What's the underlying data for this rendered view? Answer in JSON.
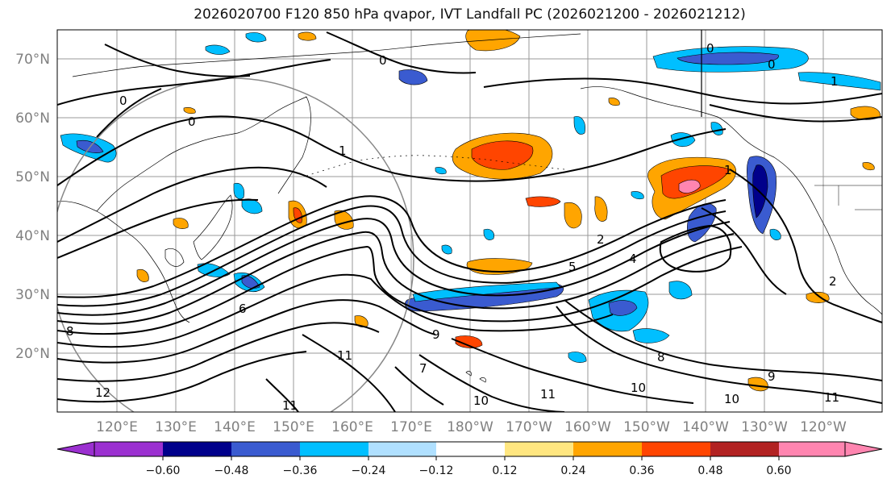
{
  "title": "2026020700 F120 850 hPa qvapor, IVT Landfall PC (2026021200 - 2026021212)",
  "lat_labels": [
    "70°N",
    "60°N",
    "50°N",
    "40°N",
    "30°N",
    "20°N"
  ],
  "lon_labels": [
    "120°E",
    "130°E",
    "140°E",
    "150°E",
    "160°E",
    "170°E",
    "180°W",
    "170°W",
    "160°W",
    "150°W",
    "140°W",
    "130°W",
    "120°W"
  ],
  "colorbar": {
    "ticks": [
      "−0.60",
      "−0.48",
      "−0.36",
      "−0.24",
      "−0.12",
      "0.12",
      "0.24",
      "0.36",
      "0.48",
      "0.60"
    ],
    "colors": [
      "#9b30d0",
      "#00008b",
      "#3a5bd0",
      "#00bfff",
      "#b0e0ff",
      "#ffffff",
      "#ffe680",
      "#ffa500",
      "#ff4500",
      "#b22222",
      "#ff85b0",
      "#ff85b0"
    ]
  },
  "contour_labels": [
    "0",
    "0",
    "0",
    "0",
    "0",
    "1",
    "1",
    "1",
    "2",
    "2",
    "4",
    "5",
    "6",
    "7",
    "8",
    "8",
    "9",
    "9",
    "10",
    "10",
    "10",
    "11",
    "11",
    "11",
    "11",
    "12"
  ]
}
